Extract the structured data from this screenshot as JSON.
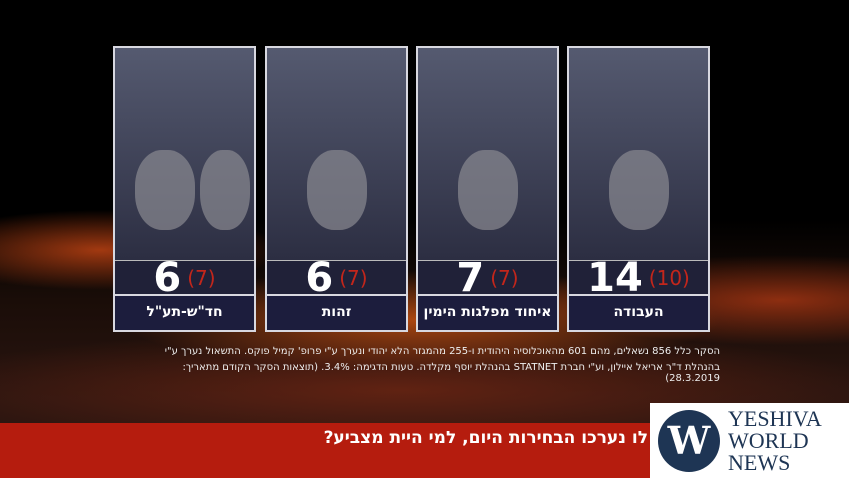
{
  "parties": [
    {
      "name": "חד\"ש-תע\"ל",
      "seats": "6",
      "previous": "(7)"
    },
    {
      "name": "זהות",
      "seats": "6",
      "previous": "(7)"
    },
    {
      "name": "איחוד מפלגות הימין",
      "seats": "7",
      "previous": "(7)"
    },
    {
      "name": "העבודה",
      "seats": "14",
      "previous": "(10)"
    }
  ],
  "footnote": {
    "line1": "הסקר כלל 856 נשאלים, מהם 601 מהאוכלוסיה היהודית ו-255 מהמגזר הלא יהודי ונערך ע\"י פרופ' קמיל פוקס. התשאול נערך ע\"י",
    "line2": "בהנהלת ד\"ר אריאל איילון, וע\"י חברת STATNET בהנהלת יוסף מקלדה. טעות הדגימה: 3.4%. (תוצאות הסקר הקודם מתאריך: 28.3.2019)"
  },
  "question": "לו נערכו הבחירות היום, למי היית מצביע?",
  "logo": {
    "mark": "W",
    "line1": "YESHIVA",
    "line2": "WORLD",
    "line3": "NEWS"
  },
  "colors": {
    "bar": "#b51c0e",
    "previous": "#c3261b",
    "label_bg": "#1c1d3d",
    "logo": "#1e3554"
  }
}
